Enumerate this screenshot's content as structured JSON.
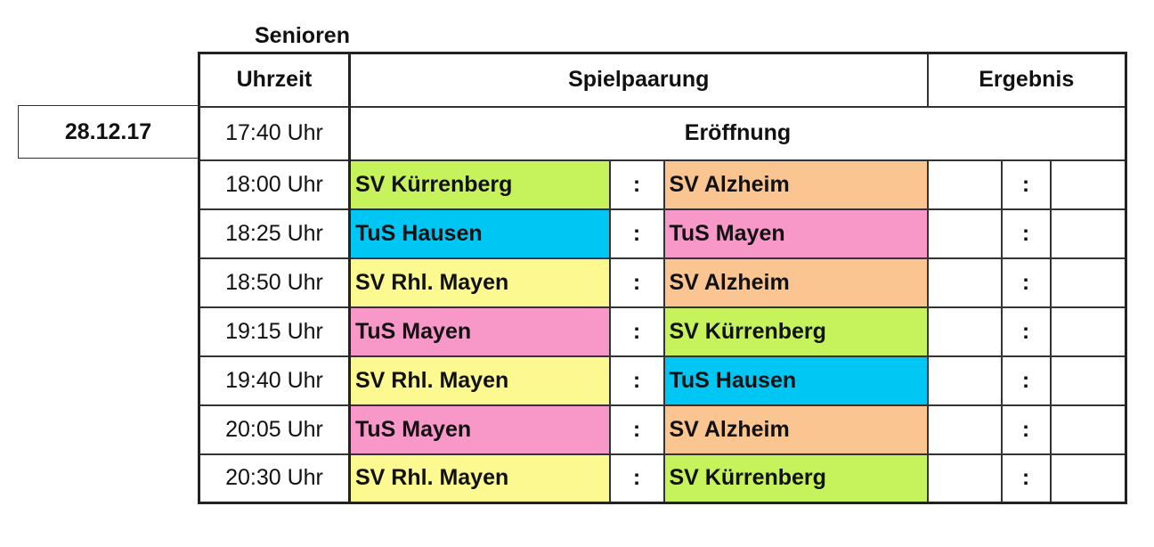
{
  "title": "Senioren",
  "date": "28.12.17",
  "headers": {
    "time": "Uhrzeit",
    "match": "Spielpaarung",
    "result": "Ergebnis"
  },
  "opening": {
    "time": "17:40 Uhr",
    "label": "Eröffnung"
  },
  "separator": ":",
  "team_colors": {
    "SV Kürrenberg": "#c6f25c",
    "SV Alzheim": "#fbc592",
    "TuS Hausen": "#00c6f4",
    "TuS Mayen": "#f898c8",
    "SV Rhl. Mayen": "#fbf98f"
  },
  "matches": [
    {
      "time": "18:00 Uhr",
      "home": "SV Kürrenberg",
      "away": "SV Alzheim"
    },
    {
      "time": "18:25 Uhr",
      "home": "TuS Hausen",
      "away": "TuS Mayen"
    },
    {
      "time": "18:50 Uhr",
      "home": "SV Rhl. Mayen",
      "away": "SV Alzheim"
    },
    {
      "time": "19:15 Uhr",
      "home": "TuS Mayen",
      "away": "SV Kürrenberg"
    },
    {
      "time": "19:40 Uhr",
      "home": "SV Rhl. Mayen",
      "away": "TuS Hausen"
    },
    {
      "time": "20:05 Uhr",
      "home": "TuS Mayen",
      "away": "SV Alzheim"
    },
    {
      "time": "20:30 Uhr",
      "home": "SV Rhl. Mayen",
      "away": "SV Kürrenberg"
    }
  ]
}
